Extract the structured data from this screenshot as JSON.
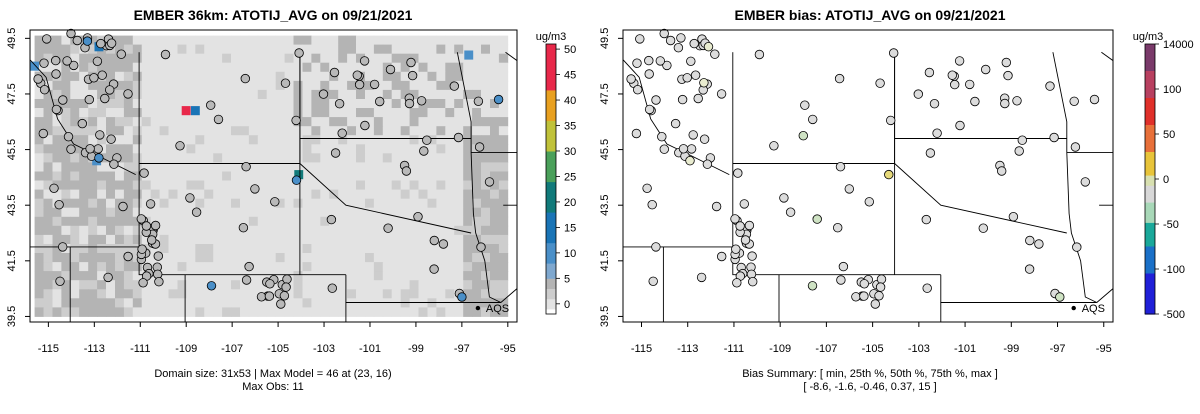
{
  "chart_data": [
    {
      "type": "heatmap",
      "title": "EMBER 36km: ATOTIJ_AVG on 09/21/2021",
      "legend_title": "ug/m3",
      "colorbar_ticks": [
        "50",
        "45",
        "40",
        "35",
        "30",
        "25",
        "20",
        "15",
        "10",
        "5",
        "0"
      ],
      "colorbar_range": [
        -2,
        51
      ],
      "xlim": [
        -115.8,
        -94.6
      ],
      "ylim": [
        39.3,
        49.8
      ],
      "x_ticks": [
        "-115",
        "-113",
        "-111",
        "-109",
        "-107",
        "-105",
        "-103",
        "-101",
        "-99",
        "-97",
        "-95"
      ],
      "y_ticks": [
        "39.5",
        "41.5",
        "43.5",
        "45.5",
        "47.5",
        "49.5"
      ],
      "site_label": "AQS",
      "site_marker": [
        -96.3,
        39.8
      ],
      "footer_line1": "Domain size: 31x53 | Max Model = 46 at (23, 16)",
      "footer_line2": "Max Obs: 11",
      "hotspots": [
        {
          "lon": -109.0,
          "lat": 46.9,
          "value": 46
        },
        {
          "lon": -108.6,
          "lat": 46.9,
          "value": 12
        },
        {
          "lon": -104.1,
          "lat": 44.6,
          "value": 20
        },
        {
          "lon": -112.8,
          "lat": 49.2,
          "value": 12
        },
        {
          "lon": -112.9,
          "lat": 45.1,
          "value": 10
        },
        {
          "lon": -96.7,
          "lat": 48.9,
          "value": 11
        },
        {
          "lon": -115.6,
          "lat": 48.5,
          "value": 9
        }
      ],
      "colored_obs": [
        {
          "lon": -95.4,
          "lat": 47.3,
          "value": 10
        },
        {
          "lon": -97.0,
          "lat": 40.2,
          "value": 9
        },
        {
          "lon": -107.9,
          "lat": 40.6,
          "value": 9
        },
        {
          "lon": -104.2,
          "lat": 44.4,
          "value": 9
        },
        {
          "lon": -113.3,
          "lat": 49.4,
          "value": 8
        },
        {
          "lon": -112.8,
          "lat": 45.2,
          "value": 8
        }
      ]
    },
    {
      "type": "scatter",
      "title": "EMBER bias: ATOTIJ_AVG on 09/21/2021",
      "legend_title": "ug/m3",
      "colorbar_ticks": [
        "14000",
        "100",
        "50",
        "0",
        "-50",
        "-100",
        "-500"
      ],
      "xlim": [
        -115.8,
        -94.6
      ],
      "ylim": [
        39.3,
        49.8
      ],
      "x_ticks": [
        "-115",
        "-113",
        "-111",
        "-109",
        "-107",
        "-105",
        "-103",
        "-101",
        "-99",
        "-97",
        "-95"
      ],
      "y_ticks": [
        "39.5",
        "41.5",
        "43.5",
        "45.5",
        "47.5",
        "49.5"
      ],
      "site_label": "AQS",
      "site_marker": [
        -96.3,
        39.8
      ],
      "footer_line1": "Bias Summary: [ min, 25th %, 50th %, 75th %, max ]",
      "footer_line2": "[ -8.6,   -1.6,   -0.46,   0.37,   15 ]",
      "colored_obs": [
        {
          "lon": -104.3,
          "lat": 44.6,
          "value": 15
        },
        {
          "lon": -107.4,
          "lat": 43.0,
          "value": -2
        },
        {
          "lon": -108.0,
          "lat": 46.0,
          "value": -2
        },
        {
          "lon": -96.9,
          "lat": 40.2,
          "value": -2
        },
        {
          "lon": -107.6,
          "lat": 40.6,
          "value": -2
        },
        {
          "lon": -95.4,
          "lat": 47.3,
          "value": -1.6
        },
        {
          "lon": -112.9,
          "lat": 45.1,
          "value": 4
        },
        {
          "lon": -112.3,
          "lat": 47.9,
          "value": 3
        },
        {
          "lon": -112.1,
          "lat": 49.2,
          "value": 3
        }
      ]
    }
  ]
}
